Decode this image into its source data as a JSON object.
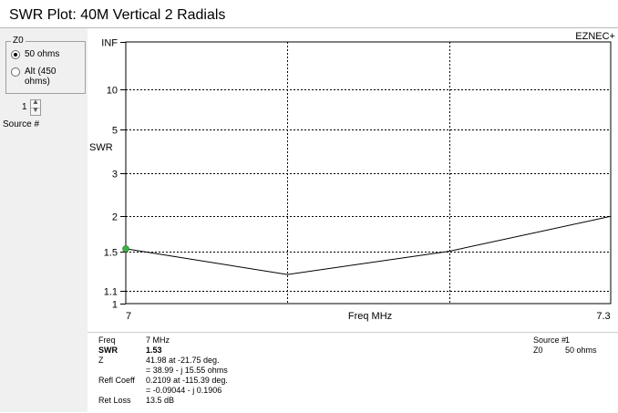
{
  "window": {
    "title": "SWR Plot: 40M Vertical 2 Radials"
  },
  "z0_group": {
    "legend": "Z0",
    "option_50": "50 ohms",
    "option_alt": "Alt (450 ohms)",
    "selected": "option_50"
  },
  "source": {
    "spinner_value": "1",
    "label": "Source #"
  },
  "chart_data": {
    "type": "line",
    "watermark": "EZNEC+",
    "ylabel": "SWR",
    "xlabel": "Freq MHz",
    "x_tick_labels": [
      "7",
      "7.3"
    ],
    "xlim": [
      7.0,
      7.3
    ],
    "x_gridlines": [
      7.1,
      7.2
    ],
    "y_tick_labels": [
      "INF",
      "10",
      "5",
      "3",
      "2",
      "1.5",
      "1.1",
      "1"
    ],
    "y_tick_values": [
      "INF",
      10,
      5,
      3,
      2,
      1.5,
      1.1,
      1
    ],
    "grid": true,
    "series": [
      {
        "x": [
          7.0,
          7.1,
          7.2,
          7.3
        ],
        "y": [
          1.53,
          1.25,
          1.5,
          2.0
        ]
      }
    ],
    "marker": {
      "x": 7.0,
      "y": 1.53
    },
    "colors": {
      "line": "#000000",
      "marker": "#3cb043",
      "grid": "#000000"
    }
  },
  "readout": {
    "freq_label": "Freq",
    "freq_value": "7 MHz",
    "swr_label": "SWR",
    "swr_value": "1.53",
    "z_label": "Z",
    "z_value_1": "41.98 at -21.75 deg.",
    "z_value_2": "= 38.99 - j 15.55 ohms",
    "refl_label": "Refl Coeff",
    "refl_value_1": "0.2109 at -115.39 deg.",
    "refl_value_2": "= -0.09044 - j 0.1906",
    "retloss_label": "Ret Loss",
    "retloss_value": "13.5 dB",
    "source_label": "Source #",
    "source_value": "1",
    "z0_label": "Z0",
    "z0_value": "50 ohms"
  }
}
